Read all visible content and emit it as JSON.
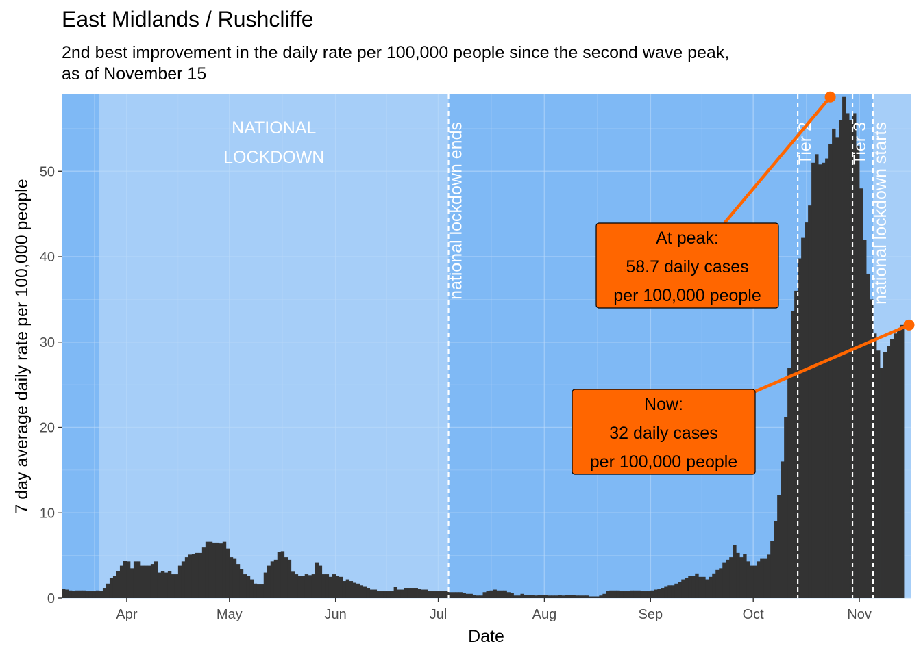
{
  "chart_data": {
    "type": "bar",
    "title": "East Midlands / Rushcliffe",
    "subtitle": "2nd best improvement in the daily rate per 100,000 people since the second wave peak, as of November 15",
    "subtitle_lines": [
      "2nd best improvement in the daily rate per 100,000 people since the second wave peak,",
      "as of November 15"
    ],
    "xlabel": "Date",
    "ylabel": "7 day average daily rate per 100,000 people",
    "ylim": [
      0,
      59
    ],
    "yticks": [
      0,
      10,
      20,
      30,
      40,
      50
    ],
    "x_start": "2020-03-13",
    "x_end": "2020-11-15",
    "xticks": [
      {
        "date": "2020-04-01",
        "label": "Apr"
      },
      {
        "date": "2020-05-01",
        "label": "May"
      },
      {
        "date": "2020-06-01",
        "label": "Jun"
      },
      {
        "date": "2020-07-01",
        "label": "Jul"
      },
      {
        "date": "2020-08-01",
        "label": "Aug"
      },
      {
        "date": "2020-09-01",
        "label": "Sep"
      },
      {
        "date": "2020-10-01",
        "label": "Oct"
      },
      {
        "date": "2020-11-01",
        "label": "Nov"
      }
    ],
    "grid": true,
    "background_periods": [
      {
        "start": "2020-03-13",
        "end": "2020-03-24",
        "color": "#7fb9f5"
      },
      {
        "start": "2020-03-24",
        "end": "2020-07-04",
        "color": "#a6cef8"
      },
      {
        "start": "2020-07-04",
        "end": "2020-11-05",
        "color": "#7fb9f5"
      },
      {
        "start": "2020-11-05",
        "end": "2020-11-15",
        "color": "#a6cef8"
      }
    ],
    "period_labels": [
      {
        "lines": [
          "NATIONAL",
          "LOCKDOWN"
        ],
        "date": "2020-05-14",
        "y": 53
      }
    ],
    "event_lines": [
      {
        "date": "2020-07-04",
        "label": "national lockdown ends"
      },
      {
        "date": "2020-10-14",
        "label": "Tier 2"
      },
      {
        "date": "2020-10-30",
        "label": "Tier 3"
      },
      {
        "date": "2020-11-05",
        "label": "national lockdown starts"
      }
    ],
    "series": [
      {
        "start_date": "2020-03-13",
        "values": [
          1.1,
          1.0,
          0.9,
          0.8,
          0.9,
          0.9,
          0.9,
          0.8,
          0.8,
          0.8,
          0.9,
          0.8,
          1.2,
          1.7,
          2.4,
          2.6,
          3.2,
          3.8,
          4.4,
          4.3,
          3.5,
          4.3,
          4.3,
          3.8,
          3.8,
          3.8,
          4.0,
          4.3,
          3.0,
          3.2,
          3.0,
          3.2,
          2.8,
          2.8,
          3.8,
          4.3,
          4.8,
          5.1,
          5.2,
          5.3,
          5.3,
          6.0,
          6.6,
          6.6,
          6.5,
          6.5,
          6.4,
          6.6,
          5.8,
          4.8,
          4.6,
          4.0,
          3.4,
          2.8,
          2.6,
          2.2,
          1.7,
          1.6,
          1.6,
          3.0,
          3.8,
          4.3,
          4.5,
          5.4,
          5.5,
          4.8,
          4.5,
          3.1,
          2.8,
          2.6,
          2.6,
          2.8,
          2.7,
          2.8,
          4.2,
          3.8,
          2.8,
          2.8,
          2.5,
          2.8,
          2.6,
          2.5,
          2.0,
          2.2,
          2.0,
          1.8,
          1.7,
          1.5,
          1.4,
          1.2,
          1.0,
          1.0,
          0.8,
          0.8,
          0.8,
          0.8,
          0.8,
          1.3,
          1.0,
          1.0,
          1.2,
          1.2,
          1.2,
          1.2,
          1.1,
          1.0,
          1.0,
          0.8,
          0.8,
          0.8,
          0.8,
          0.8,
          0.8,
          0.7,
          0.7,
          0.7,
          0.7,
          0.6,
          0.5,
          0.5,
          0.4,
          0.3,
          0.3,
          0.7,
          0.8,
          0.9,
          1.0,
          0.9,
          0.9,
          0.9,
          0.7,
          0.6,
          0.3,
          0.3,
          0.5,
          0.4,
          0.4,
          0.4,
          0.3,
          0.4,
          0.4,
          0.4,
          0.3,
          0.3,
          0.3,
          0.4,
          0.3,
          0.4,
          0.4,
          0.4,
          0.3,
          0.3,
          0.3,
          0.3,
          0.2,
          0.2,
          0.2,
          0.3,
          0.5,
          0.8,
          0.9,
          0.9,
          0.9,
          0.8,
          0.8,
          0.8,
          0.9,
          0.9,
          0.9,
          0.8,
          0.8,
          0.8,
          0.9,
          1.0,
          1.1,
          1.2,
          1.4,
          1.5,
          1.5,
          1.7,
          1.9,
          2.2,
          2.4,
          2.6,
          2.6,
          2.9,
          2.5,
          2.5,
          2.2,
          2.5,
          2.9,
          3.3,
          3.5,
          4.2,
          4.5,
          4.8,
          6.2,
          5.3,
          4.8,
          5.2,
          4.3,
          3.8,
          3.8,
          4.3,
          4.6,
          4.6,
          5.1,
          6.7,
          9.0,
          12.1,
          16.0,
          21.2,
          27.0,
          33.6,
          36.0,
          39.8,
          42.2,
          44.0,
          46.0,
          51.0,
          52.0,
          50.8,
          51.0,
          51.5,
          53.2,
          55.0,
          54.0,
          56.0,
          58.7,
          56.8,
          56.0,
          56.8,
          53.0,
          48.0,
          42.0,
          38.0,
          35.0,
          31.0,
          29.0,
          27.0,
          28.8,
          29.5,
          30.3,
          31.0,
          31.5,
          32.0
        ]
      }
    ],
    "annotations": [
      {
        "kind": "peak",
        "lines": [
          "At peak:",
          "58.7 daily cases",
          "per 100,000 people"
        ],
        "date": "2020-10-23",
        "value": 58.7,
        "color": "#ff6600"
      },
      {
        "kind": "now",
        "lines": [
          "Now:",
          "32 daily cases",
          "per 100,000 people"
        ],
        "date": "2020-11-15",
        "value": 32,
        "color": "#ff6600"
      }
    ],
    "colors": {
      "bars": "#333333",
      "accent": "#ff6600",
      "grid": "#bcdaf9",
      "event_line": "#ffffff"
    }
  }
}
